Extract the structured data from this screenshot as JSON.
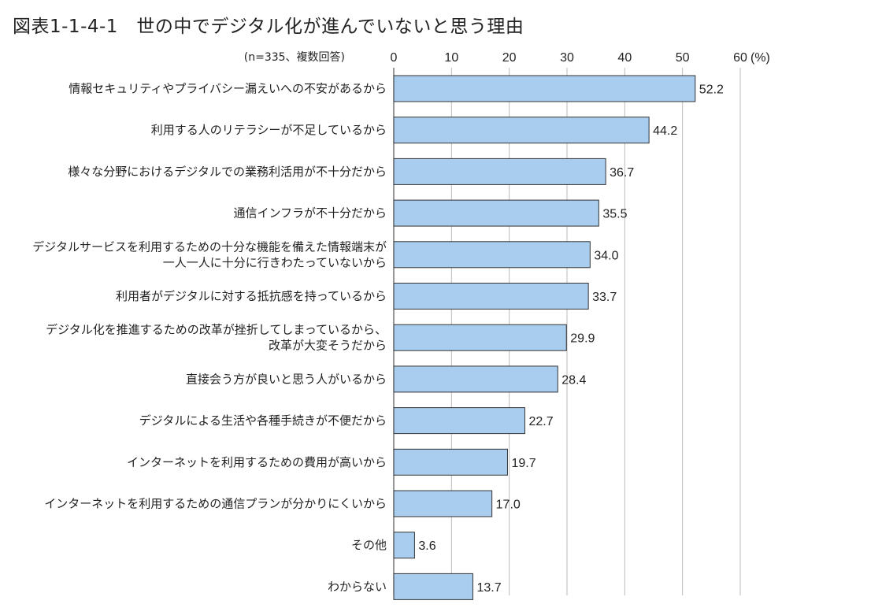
{
  "title": "図表1-1-4-1　世の中でデジタル化が進んでいないと思う理由",
  "chart_data": {
    "type": "bar",
    "orientation": "horizontal",
    "note": "(n=335、複数回答)",
    "unit_label": "(%)",
    "xlim": [
      0,
      60
    ],
    "ticks": [
      0,
      10,
      20,
      30,
      40,
      50,
      60
    ],
    "grid": true,
    "bar_color": "#a8cdee",
    "bar_edge_color": "#333333",
    "categories": [
      [
        "情報セキュリティやプライバシー漏えいへの不安があるから"
      ],
      [
        "利用する人のリテラシーが不足しているから"
      ],
      [
        "様々な分野におけるデジタルでの業務利活用が不十分だから"
      ],
      [
        "通信インフラが不十分だから"
      ],
      [
        "デジタルサービスを利用するための十分な機能を備えた情報端末が",
        "一人一人に十分に行きわたっていないから"
      ],
      [
        "利用者がデジタルに対する抵抗感を持っているから"
      ],
      [
        "デジタル化を推進するための改革が挫折してしまっているから、",
        "改革が大変そうだから"
      ],
      [
        "直接会う方が良いと思う人がいるから"
      ],
      [
        "デジタルによる生活や各種手続きが不便だから"
      ],
      [
        "インターネットを利用するための費用が高いから"
      ],
      [
        "インターネットを利用するための通信プランが分かりにくいから"
      ],
      [
        "その他"
      ],
      [
        "わからない"
      ]
    ],
    "values": [
      52.2,
      44.2,
      36.7,
      35.5,
      34.0,
      33.7,
      29.9,
      28.4,
      22.7,
      19.7,
      17.0,
      3.6,
      13.7
    ],
    "value_labels": [
      "52.2",
      "44.2",
      "36.7",
      "35.5",
      "34.0",
      "33.7",
      "29.9",
      "28.4",
      "22.7",
      "19.7",
      "17.0",
      "3.6",
      "13.7"
    ]
  }
}
